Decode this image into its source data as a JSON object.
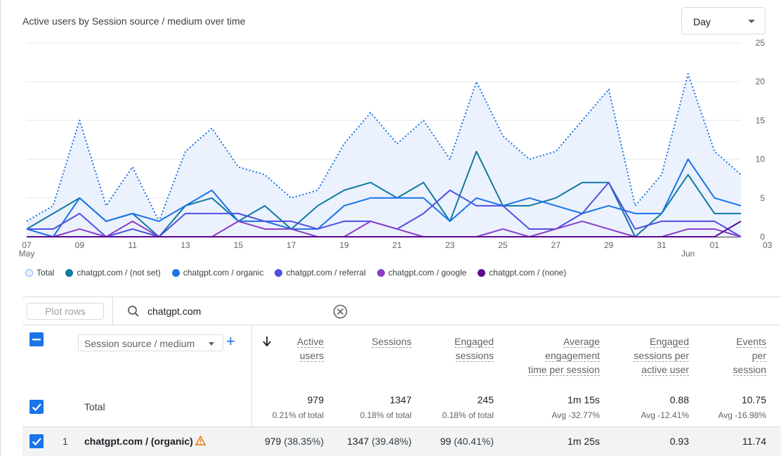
{
  "chart": {
    "title": "Active users by Session source / medium over time",
    "granularity": "Day",
    "y_ticks": [
      "25",
      "20",
      "15",
      "10",
      "5",
      "0"
    ],
    "x_ticks": [
      "07",
      "09",
      "11",
      "13",
      "15",
      "17",
      "19",
      "21",
      "23",
      "25",
      "27",
      "29",
      "31",
      "01",
      "03"
    ],
    "x_month_labels": [
      "May",
      "Jun"
    ]
  },
  "chart_data": {
    "type": "line",
    "x": [
      "May 07",
      "May 08",
      "May 09",
      "May 10",
      "May 11",
      "May 12",
      "May 13",
      "May 14",
      "May 15",
      "May 16",
      "May 17",
      "May 18",
      "May 19",
      "May 20",
      "May 21",
      "May 22",
      "May 23",
      "May 24",
      "May 25",
      "May 26",
      "May 27",
      "May 28",
      "May 29",
      "May 30",
      "May 31",
      "Jun 01",
      "Jun 02",
      "Jun 03"
    ],
    "ylim": [
      0,
      25
    ],
    "grid": true,
    "legend_position": "bottom-left",
    "series": [
      {
        "name": "Total",
        "color": "#1a73e8",
        "style": "dotted-area",
        "values": [
          2,
          4,
          15,
          4,
          9,
          2,
          11,
          14,
          9,
          8,
          5,
          6,
          12,
          16,
          12,
          15,
          10,
          20,
          13,
          10,
          11,
          15,
          19,
          4,
          8,
          21,
          11,
          8
        ]
      },
      {
        "name": "chatgpt.com / (not set)",
        "color": "#12799f",
        "values": [
          1,
          3,
          5,
          2,
          3,
          0,
          4,
          5,
          2,
          4,
          1,
          4,
          6,
          7,
          5,
          7,
          2,
          11,
          4,
          4,
          5,
          7,
          7,
          0,
          3,
          8,
          3,
          3
        ]
      },
      {
        "name": "chatgpt.com / organic",
        "color": "#1a73e8",
        "values": [
          1,
          0,
          5,
          2,
          3,
          2,
          4,
          6,
          2,
          2,
          1,
          1,
          4,
          5,
          5,
          5,
          2,
          5,
          4,
          5,
          4,
          3,
          4,
          3,
          3,
          10,
          5,
          4
        ]
      },
      {
        "name": "chatgpt.com / referral",
        "color": "#4f4fe0",
        "values": [
          1,
          1,
          3,
          0,
          1,
          0,
          3,
          3,
          3,
          2,
          2,
          1,
          2,
          2,
          1,
          3,
          6,
          4,
          4,
          1,
          1,
          3,
          7,
          1,
          2,
          2,
          2,
          0
        ]
      },
      {
        "name": "chatgpt.com / google",
        "color": "#8a3ec8",
        "values": [
          0,
          0,
          1,
          0,
          2,
          0,
          0,
          0,
          2,
          1,
          1,
          0,
          0,
          2,
          1,
          0,
          0,
          0,
          1,
          0,
          1,
          2,
          1,
          0,
          0,
          1,
          1,
          0
        ]
      },
      {
        "name": "chatgpt.com / (none)",
        "color": "#5b0b8f",
        "values": [
          0,
          0,
          0,
          0,
          0,
          0,
          0,
          0,
          0,
          0,
          0,
          0,
          0,
          0,
          0,
          0,
          0,
          0,
          0,
          0,
          0,
          0,
          0,
          0,
          0,
          0,
          0,
          2
        ]
      }
    ]
  },
  "controls": {
    "plot_rows": "Plot rows",
    "search_value": "chatgpt.com",
    "dimension": "Session source / medium"
  },
  "table": {
    "headers": [
      [
        "Active",
        "users"
      ],
      [
        "Sessions"
      ],
      [
        "Engaged",
        "sessions"
      ],
      [
        "Average",
        "engagement",
        "time per session"
      ],
      [
        "Engaged",
        "sessions per",
        "active user"
      ],
      [
        "Events",
        "per",
        "session"
      ]
    ],
    "totals_label": "Total",
    "totals": [
      "979",
      "1347",
      "245",
      "1m 15s",
      "0.88",
      "10.75"
    ],
    "totals_sub": [
      "0.21% of total",
      "0.18% of total",
      "0.18% of total",
      "Avg -32.77%",
      "Avg -12.41%",
      "Avg -16.98%"
    ],
    "rows": [
      {
        "index": "1",
        "dimension": "chatgpt.com / (organic)",
        "values": [
          "979",
          "1347",
          "99",
          "1m 25s",
          "0.93",
          "11.74"
        ],
        "pcts": [
          "(38.35%)",
          "(39.48%)",
          "(40.41%)",
          "",
          "",
          ""
        ]
      }
    ]
  }
}
